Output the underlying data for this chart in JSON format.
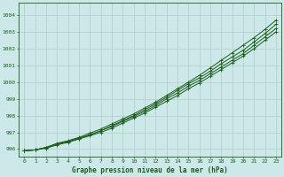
{
  "title": "Graphe pression niveau de la mer (hPa)",
  "x_ticks": [
    0,
    1,
    2,
    3,
    4,
    5,
    6,
    7,
    8,
    9,
    10,
    11,
    12,
    13,
    14,
    15,
    16,
    17,
    18,
    19,
    20,
    21,
    22,
    23
  ],
  "y_ticks": [
    996,
    997,
    998,
    999,
    1000,
    1001,
    1002,
    1003,
    1004
  ],
  "ylim": [
    995.55,
    1004.75
  ],
  "xlim": [
    -0.5,
    23.5
  ],
  "background_color": "#cde8e8",
  "grid_color": "#b0cfc8",
  "line_color": "#1a5e1a",
  "line1": [
    995.9,
    995.95,
    996.1,
    996.3,
    996.45,
    996.65,
    996.85,
    997.1,
    997.35,
    997.65,
    997.95,
    998.25,
    998.6,
    999.0,
    999.35,
    999.75,
    1000.1,
    1000.5,
    1000.9,
    1001.3,
    1001.7,
    1002.2,
    1002.7,
    1003.2
  ],
  "line2": [
    995.9,
    995.95,
    996.1,
    996.35,
    996.5,
    996.7,
    996.95,
    997.2,
    997.5,
    997.8,
    998.1,
    998.45,
    998.8,
    999.2,
    999.6,
    1000.0,
    1000.4,
    1000.85,
    1001.3,
    1001.75,
    1002.2,
    1002.65,
    1003.15,
    1003.7
  ],
  "line3": [
    995.9,
    995.95,
    996.05,
    996.25,
    996.4,
    996.6,
    996.8,
    997.0,
    997.25,
    997.55,
    997.85,
    998.15,
    998.5,
    998.85,
    999.2,
    999.6,
    999.95,
    1000.35,
    1000.75,
    1001.15,
    1001.55,
    1002.0,
    1002.5,
    1003.0
  ],
  "line4": [
    995.9,
    995.95,
    996.1,
    996.3,
    996.45,
    996.65,
    996.85,
    997.1,
    997.4,
    997.7,
    998.0,
    998.35,
    998.7,
    999.1,
    999.5,
    999.9,
    1000.25,
    1000.65,
    1001.1,
    1001.5,
    1001.9,
    1002.4,
    1002.9,
    1003.45
  ],
  "marker_size": 2.5,
  "linewidth": 0.7,
  "tick_fontsize": 4.5,
  "label_fontsize": 5.5
}
